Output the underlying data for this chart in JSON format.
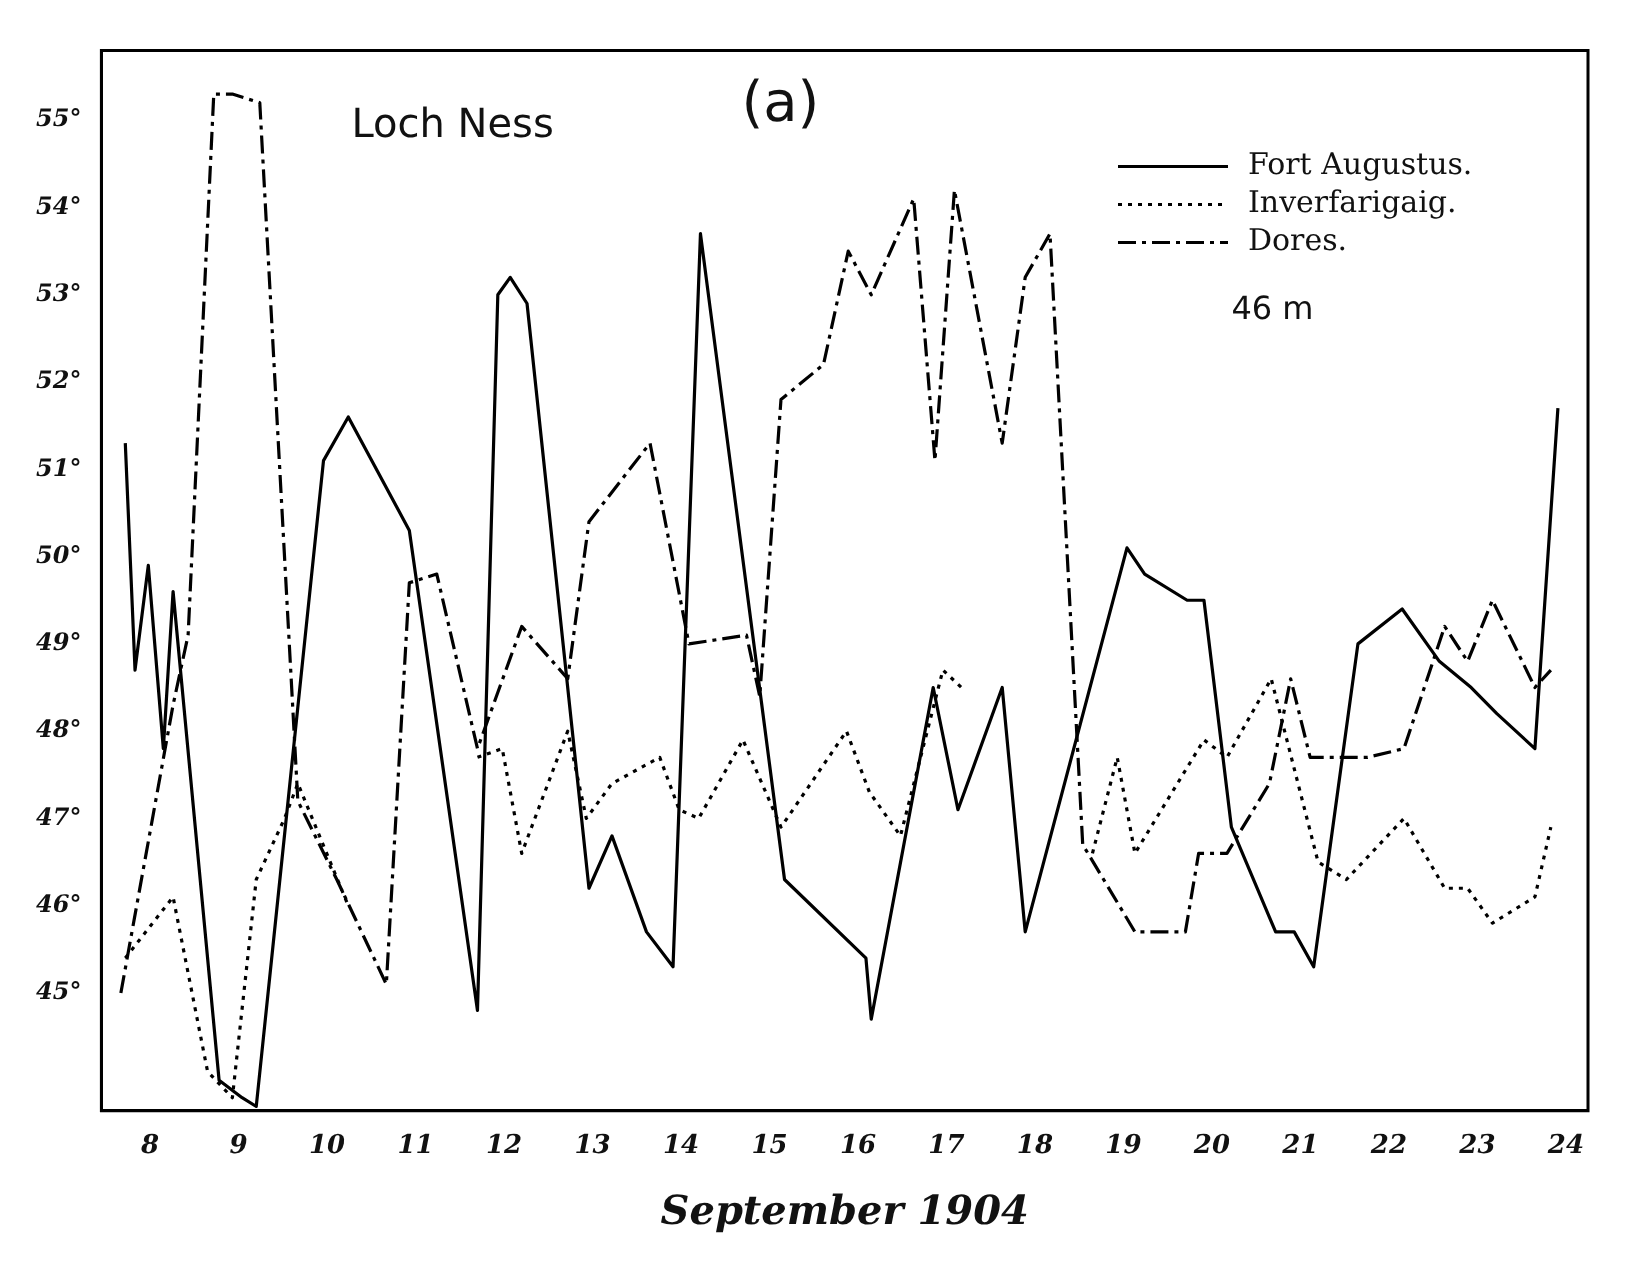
{
  "chart_data": {
    "type": "line",
    "title": "Loch Ness",
    "xlabel": "September 1904",
    "annotations": [
      "(a)",
      "46 m"
    ],
    "xlim": [
      7.45,
      24.25
    ],
    "xticks": [
      8,
      9,
      10,
      11,
      12,
      13,
      14,
      15,
      16,
      17,
      18,
      19,
      20,
      21,
      22,
      23,
      24
    ],
    "ylim": [
      43.65,
      55.8
    ],
    "yticks": [
      {
        "value": 45,
        "label": "45°"
      },
      {
        "value": 46,
        "label": "46°"
      },
      {
        "value": 47,
        "label": "47°"
      },
      {
        "value": 48,
        "label": "48°"
      },
      {
        "value": 49,
        "label": "49°"
      },
      {
        "value": 50,
        "label": "50°"
      },
      {
        "value": 51,
        "label": "51°"
      },
      {
        "value": 52,
        "label": "52°"
      },
      {
        "value": 53,
        "label": "53°"
      },
      {
        "value": 54,
        "label": "54°"
      },
      {
        "value": 55,
        "label": "55°"
      }
    ],
    "grid": false,
    "legend": "top right",
    "marker": "none",
    "series": [
      {
        "name": "Fort Augustus.",
        "color": "#000000",
        "line_style": "solid",
        "x": [
          7.72,
          7.83,
          7.98,
          8.15,
          8.26,
          8.78,
          9.04,
          9.2,
          9.96,
          10.24,
          10.93,
          11.7,
          11.93,
          12.07,
          12.26,
          12.96,
          13.22,
          13.61,
          13.91,
          14.22,
          15.17,
          16.09,
          16.15,
          16.85,
          17.13,
          17.63,
          17.89,
          19.04,
          19.24,
          19.72,
          19.91,
          20.22,
          20.72,
          20.93,
          21.15,
          21.65,
          22.15,
          22.57,
          22.93,
          23.22,
          23.65,
          23.91
        ],
        "values": [
          51.3,
          48.7,
          49.9,
          47.8,
          49.6,
          44.0,
          43.8,
          43.7,
          51.1,
          51.6,
          50.3,
          44.8,
          53.0,
          53.2,
          52.9,
          46.2,
          46.8,
          45.7,
          45.3,
          53.7,
          46.3,
          45.4,
          44.7,
          48.5,
          47.1,
          48.5,
          45.7,
          50.1,
          49.8,
          49.5,
          49.5,
          46.9,
          45.7,
          45.7,
          45.3,
          49.0,
          49.4,
          48.8,
          48.5,
          48.2,
          47.8,
          51.7
        ]
      },
      {
        "name": "Inverfarigaig.",
        "color": "#000000",
        "line_style": "dotted",
        "x": [
          7.72,
          8.26,
          8.65,
          8.93,
          9.2,
          9.52,
          9.67,
          10.24,
          10.9,
          11.7,
          11.98,
          12.2,
          12.72,
          12.93,
          13.22,
          13.76,
          13.98,
          14.2,
          14.7,
          15.13,
          15.87,
          16.13,
          16.48,
          16.96,
          17.17,
          17.9,
          18.65,
          18.93,
          19.13,
          19.91,
          20.17,
          20.67,
          21.2,
          21.52,
          22.17,
          22.63,
          22.89,
          23.17,
          23.65,
          23.83
        ],
        "values": [
          45.4,
          46.1,
          44.1,
          43.8,
          46.3,
          47.0,
          47.4,
          46.0,
          null,
          47.7,
          47.8,
          46.6,
          48.0,
          47.0,
          47.4,
          47.7,
          47.1,
          47.0,
          47.9,
          46.9,
          48.0,
          47.3,
          46.8,
          48.7,
          48.5,
          null,
          46.6,
          47.7,
          46.6,
          47.9,
          47.7,
          48.6,
          46.5,
          46.3,
          47.0,
          46.2,
          46.2,
          45.8,
          46.1,
          46.9
        ]
      },
      {
        "name": "Dores.",
        "color": "#000000",
        "line_style": "dashed",
        "x": [
          7.67,
          8.26,
          8.43,
          8.72,
          8.93,
          9.24,
          9.67,
          10.11,
          10.67,
          10.93,
          11.24,
          11.7,
          12.2,
          12.72,
          12.96,
          13.65,
          14.09,
          14.74,
          14.89,
          15.13,
          15.61,
          15.89,
          16.15,
          16.63,
          16.87,
          17.09,
          17.63,
          17.89,
          18.17,
          18.54,
          19.13,
          19.7,
          19.85,
          20.17,
          20.65,
          20.89,
          21.11,
          21.76,
          22.17,
          22.63,
          22.89,
          23.17,
          23.65,
          23.83
        ],
        "values": [
          45.0,
          48.3,
          49.1,
          55.3,
          55.3,
          55.2,
          47.2,
          46.3,
          45.1,
          49.7,
          49.8,
          47.8,
          49.2,
          48.6,
          50.4,
          51.3,
          49.0,
          49.1,
          48.4,
          51.8,
          52.2,
          53.5,
          53.0,
          54.1,
          51.1,
          54.2,
          51.3,
          53.2,
          53.7,
          46.7,
          45.7,
          45.7,
          46.6,
          46.6,
          47.4,
          48.6,
          47.7,
          47.7,
          47.8,
          49.2,
          48.8,
          49.5,
          48.5,
          48.7
        ]
      }
    ]
  }
}
